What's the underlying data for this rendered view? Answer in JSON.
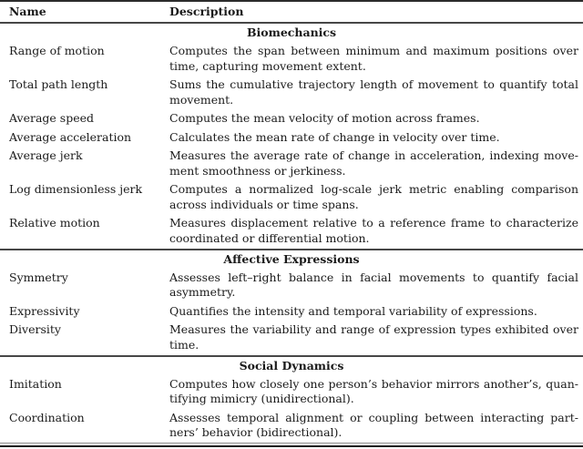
{
  "colors": {
    "text-color": "#1a1a1a",
    "rule-heavy": "#2b2b2b",
    "rule-mid": "#474747",
    "page-bg": "#ffffff"
  },
  "table": {
    "columns": [
      "Name",
      "Description"
    ],
    "sections": [
      {
        "title": "Biomechanics",
        "rows": [
          {
            "name": "Range of motion",
            "description": "Computes the span between minimum and maximum positions over time, capturing movement extent."
          },
          {
            "name": "Total path length",
            "description": "Sums the cumulative trajectory length of movement to quantify total movement."
          },
          {
            "name": "Average speed",
            "description": "Computes the mean velocity of motion across frames."
          },
          {
            "name": "Average acceleration",
            "description": "Calculates the mean rate of change in velocity over time."
          },
          {
            "name": "Average jerk",
            "description": "Measures the average rate of change in acceleration, indexing move­ment smoothness or jerkiness."
          },
          {
            "name": "Log dimensionless jerk",
            "description": "Computes a normalized log-scale jerk metric enabling comparison across individuals or time spans."
          },
          {
            "name": "Relative motion",
            "description": "Measures displacement relative to a reference frame to characterize coordinated or differential motion."
          }
        ]
      },
      {
        "title": "Affective Expressions",
        "rows": [
          {
            "name": "Symmetry",
            "description": "Assesses left–right balance in facial movements to quantify facial asymmetry."
          },
          {
            "name": "Expressivity",
            "description": "Quantifies the intensity and temporal variability of expressions."
          },
          {
            "name": "Diversity",
            "description": "Measures the variability and range of expression types exhibited over time."
          }
        ]
      },
      {
        "title": "Social Dynamics",
        "rows": [
          {
            "name": "Imitation",
            "description": "Computes how closely one person’s behavior mirrors another’s, quan­tifying mimicry (unidirectional)."
          },
          {
            "name": "Coordination",
            "description": "Assesses temporal alignment or coupling between interacting part­ners’ behavior (bidirectional)."
          }
        ]
      }
    ]
  }
}
